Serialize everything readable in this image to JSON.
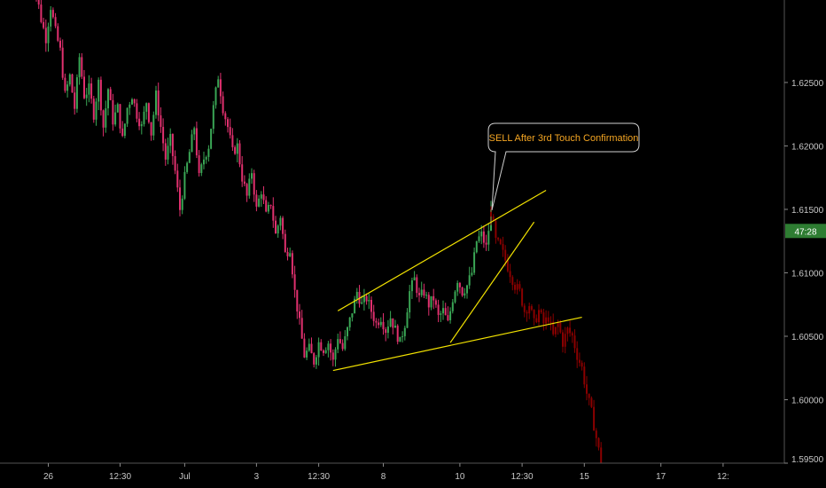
{
  "chart_data": {
    "type": "candlestick",
    "title": "",
    "xlabel": "",
    "ylabel": "",
    "ylim": [
      1.595,
      1.6315
    ],
    "grid": false,
    "x_ticks": [
      {
        "label": "26",
        "t": 5
      },
      {
        "label": "12:30",
        "t": 35
      },
      {
        "label": "Jul",
        "t": 62
      },
      {
        "label": "3",
        "t": 92
      },
      {
        "label": "12:30",
        "t": 118
      },
      {
        "label": "8",
        "t": 145
      },
      {
        "label": "10",
        "t": 177
      },
      {
        "label": "12:30",
        "t": 203
      },
      {
        "label": "15",
        "t": 229
      },
      {
        "label": "17",
        "t": 261
      },
      {
        "label": "12:",
        "t": 287
      }
    ],
    "y_ticks": [
      {
        "label": "1.62500",
        "v": 1.625
      },
      {
        "label": "1.62000",
        "v": 1.62
      },
      {
        "label": "1.61500",
        "v": 1.615
      },
      {
        "label": "1.61000",
        "v": 1.61
      },
      {
        "label": "1.60500",
        "v": 1.605
      },
      {
        "label": "1.60000",
        "v": 1.6
      },
      {
        "label": "1.59500",
        "v": 1.595
      }
    ],
    "last_price": {
      "label": "47:28",
      "v": 1.6133,
      "color": "#2e7d32"
    },
    "colors": {
      "up": "#3aa655",
      "down": "#e0306e",
      "projection": "#8a0000",
      "line": "#f2e200"
    },
    "path_main": [
      [
        -3,
        1.6335
      ],
      [
        0,
        1.632
      ],
      [
        2,
        1.63
      ],
      [
        4,
        1.6285
      ],
      [
        6,
        1.631
      ],
      [
        8,
        1.629
      ],
      [
        10,
        1.6275
      ],
      [
        12,
        1.624
      ],
      [
        14,
        1.6255
      ],
      [
        16,
        1.623
      ],
      [
        18,
        1.627
      ],
      [
        20,
        1.624
      ],
      [
        22,
        1.6245
      ],
      [
        24,
        1.6225
      ],
      [
        26,
        1.625
      ],
      [
        28,
        1.6215
      ],
      [
        30,
        1.6245
      ],
      [
        32,
        1.622
      ],
      [
        34,
        1.623
      ],
      [
        36,
        1.6205
      ],
      [
        38,
        1.623
      ],
      [
        40,
        1.624
      ],
      [
        42,
        1.6225
      ],
      [
        44,
        1.6215
      ],
      [
        46,
        1.6235
      ],
      [
        48,
        1.621
      ],
      [
        50,
        1.624
      ],
      [
        52,
        1.6215
      ],
      [
        54,
        1.619
      ],
      [
        56,
        1.6205
      ],
      [
        58,
        1.618
      ],
      [
        60,
        1.615
      ],
      [
        62,
        1.6175
      ],
      [
        64,
        1.6195
      ],
      [
        66,
        1.6215
      ],
      [
        68,
        1.6175
      ],
      [
        70,
        1.619
      ],
      [
        72,
        1.62
      ],
      [
        74,
        1.623
      ],
      [
        76,
        1.6255
      ],
      [
        78,
        1.623
      ],
      [
        80,
        1.6215
      ],
      [
        82,
        1.6195
      ],
      [
        84,
        1.62
      ],
      [
        86,
        1.6175
      ],
      [
        88,
        1.616
      ],
      [
        90,
        1.618
      ],
      [
        92,
        1.615
      ],
      [
        94,
        1.6165
      ],
      [
        96,
        1.6145
      ],
      [
        98,
        1.6155
      ],
      [
        100,
        1.613
      ],
      [
        102,
        1.6145
      ],
      [
        104,
        1.6115
      ],
      [
        106,
        1.612
      ],
      [
        108,
        1.6085
      ],
      [
        110,
        1.606
      ],
      [
        112,
        1.6035
      ],
      [
        114,
        1.604
      ],
      [
        116,
        1.603
      ],
      [
        118,
        1.6045
      ],
      [
        120,
        1.604
      ],
      [
        122,
        1.6045
      ],
      [
        124,
        1.603
      ],
      [
        126,
        1.605
      ],
      [
        128,
        1.604
      ],
      [
        130,
        1.6055
      ],
      [
        132,
        1.607
      ],
      [
        134,
        1.6085
      ],
      [
        136,
        1.6075
      ],
      [
        138,
        1.608
      ],
      [
        140,
        1.607
      ],
      [
        142,
        1.606
      ],
      [
        144,
        1.6065
      ],
      [
        146,
        1.6055
      ],
      [
        148,
        1.6065
      ],
      [
        150,
        1.6055
      ],
      [
        152,
        1.6045
      ],
      [
        154,
        1.606
      ],
      [
        156,
        1.6085
      ],
      [
        158,
        1.6095
      ],
      [
        160,
        1.608
      ],
      [
        162,
        1.6085
      ],
      [
        164,
        1.6075
      ],
      [
        166,
        1.608
      ],
      [
        168,
        1.6065
      ],
      [
        170,
        1.607
      ],
      [
        172,
        1.606
      ],
      [
        174,
        1.608
      ],
      [
        176,
        1.6095
      ],
      [
        178,
        1.6085
      ],
      [
        180,
        1.609
      ],
      [
        182,
        1.61
      ],
      [
        184,
        1.6125
      ],
      [
        186,
        1.613
      ],
      [
        188,
        1.612
      ],
      [
        190,
        1.6148
      ]
    ],
    "path_projection": [
      [
        190,
        1.6148
      ],
      [
        192,
        1.6125
      ],
      [
        194,
        1.612
      ],
      [
        196,
        1.611
      ],
      [
        198,
        1.61
      ],
      [
        200,
        1.609
      ],
      [
        202,
        1.6085
      ],
      [
        204,
        1.607
      ],
      [
        206,
        1.6075
      ],
      [
        208,
        1.606
      ],
      [
        210,
        1.607
      ],
      [
        212,
        1.606
      ],
      [
        214,
        1.6065
      ],
      [
        216,
        1.605
      ],
      [
        218,
        1.606
      ],
      [
        220,
        1.6045
      ],
      [
        222,
        1.6055
      ],
      [
        224,
        1.605
      ],
      [
        226,
        1.6035
      ],
      [
        228,
        1.6025
      ],
      [
        230,
        1.6005
      ],
      [
        232,
        1.599
      ],
      [
        234,
        1.597
      ],
      [
        236,
        1.595
      ]
    ],
    "trendlines": [
      {
        "name": "upper-channel-line",
        "p1": [
          126,
          1.607
        ],
        "p2": [
          213,
          1.6165
        ]
      },
      {
        "name": "lower-channel-line",
        "p1": [
          124,
          1.6023
        ],
        "p2": [
          228,
          1.6065
        ]
      },
      {
        "name": "rising-support-line",
        "p1": [
          173,
          1.6045
        ],
        "p2": [
          208,
          1.614
        ]
      }
    ],
    "annotations": [
      {
        "text": "SELL After 3rd Touch Confirmation",
        "anchor": [
          190,
          1.6148
        ]
      }
    ]
  }
}
